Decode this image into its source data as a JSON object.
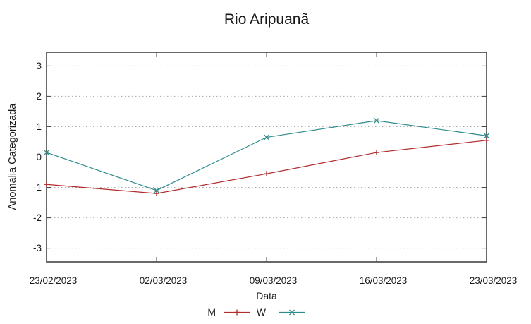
{
  "chart_data": {
    "type": "line",
    "title": "Rio Aripuanã",
    "xlabel": "Data",
    "ylabel": "Anomalia Categorizada",
    "categories": [
      "23/02/2023",
      "02/03/2023",
      "09/03/2023",
      "16/03/2023",
      "23/03/2023"
    ],
    "series": [
      {
        "name": "M",
        "marker": "plus",
        "color": "#b02b2b",
        "values": [
          -0.9,
          -1.2,
          -0.55,
          0.15,
          0.55
        ]
      },
      {
        "name": "W",
        "marker": "cross",
        "color": "#2f8b8b",
        "values": [
          0.15,
          -1.1,
          0.65,
          1.2,
          0.7
        ]
      }
    ],
    "yticks": [
      3,
      2,
      1,
      0,
      -1,
      -2,
      -3
    ],
    "ylim": [
      -3.45,
      3.45
    ],
    "grid": "horizontal-dotted",
    "legend_position": "bottom-center",
    "axis_color": "#444444",
    "grid_color": "#a8a8a8",
    "text_color": "#1a1a1a",
    "background": "#ffffff"
  }
}
